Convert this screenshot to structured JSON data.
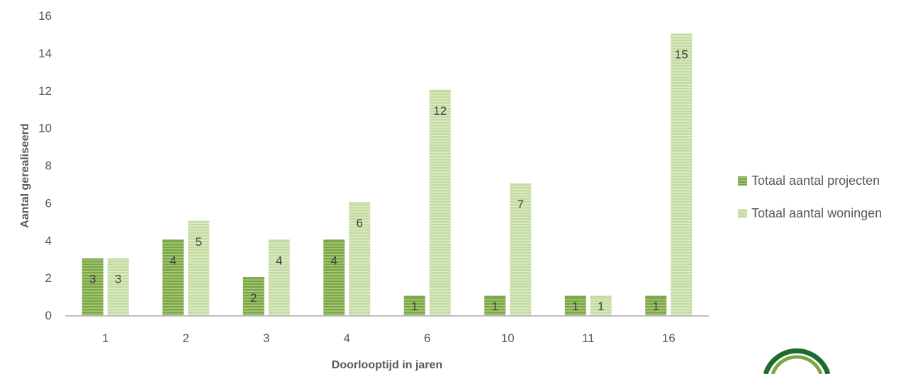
{
  "chart_data": {
    "type": "bar",
    "categories": [
      "1",
      "2",
      "3",
      "4",
      "6",
      "10",
      "11",
      "16"
    ],
    "series": [
      {
        "name": "Totaal aantal projecten",
        "values": [
          3,
          4,
          2,
          4,
          1,
          1,
          1,
          1
        ],
        "color": "#7aa646"
      },
      {
        "name": "Totaal aantal woningen",
        "values": [
          3,
          5,
          4,
          6,
          12,
          7,
          1,
          15
        ],
        "color": "#c3dba0"
      }
    ],
    "xlabel": "Doorlooptijd in jaren",
    "ylabel": "Aantal gerealiseerd",
    "ylim": [
      0,
      16
    ],
    "yticks": [
      0,
      2,
      4,
      6,
      8,
      10,
      12,
      14,
      16
    ],
    "grid": false,
    "legend": "right",
    "data_labels": true,
    "colors": {
      "axis": "#bfbfbf",
      "tick_text": "#595959",
      "logo": "#1d6b2e"
    },
    "logo_icon": "circular-logo-icon"
  }
}
